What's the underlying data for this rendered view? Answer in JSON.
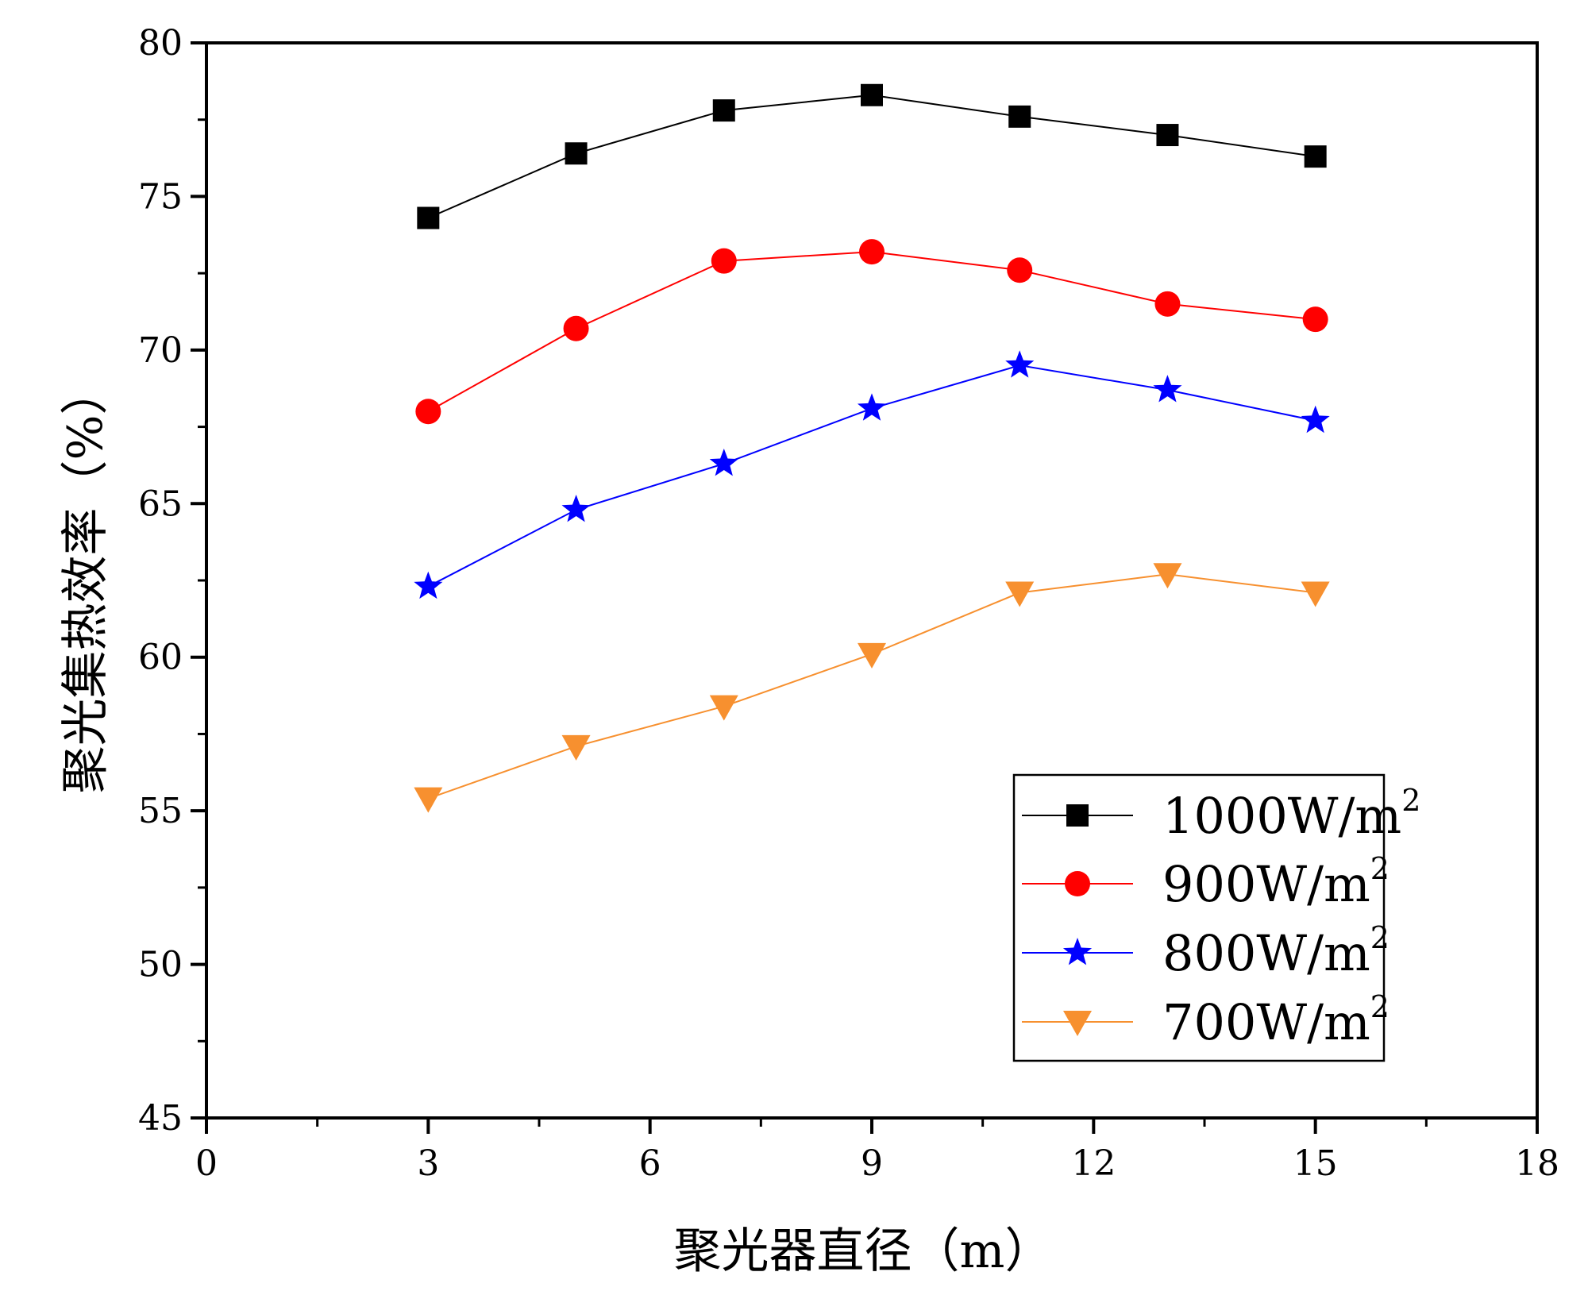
{
  "chart_data": {
    "type": "line",
    "title": "",
    "xlabel": "聚光器直径（m）",
    "ylabel": "聚光集热效率（%）",
    "xlim": [
      0,
      18
    ],
    "ylim": [
      45,
      80
    ],
    "x_ticks": [
      0,
      3,
      6,
      9,
      12,
      15,
      18
    ],
    "y_ticks": [
      45,
      50,
      55,
      60,
      65,
      70,
      75,
      80
    ],
    "grid": false,
    "legend_position": "bottom-right",
    "x": [
      3,
      5,
      7,
      9,
      11,
      13,
      15
    ],
    "series": [
      {
        "name": "1000W/m",
        "sup": "2",
        "label": "1000W/m²",
        "color": "#000000",
        "marker": "square",
        "values": [
          74.3,
          76.4,
          77.8,
          78.3,
          77.6,
          77.0,
          76.3
        ]
      },
      {
        "name": "900W/m",
        "sup": "2",
        "label": "900W/m²",
        "color": "#ff0000",
        "marker": "circle",
        "values": [
          68.0,
          70.7,
          72.9,
          73.2,
          72.6,
          71.5,
          71.0
        ]
      },
      {
        "name": "800W/m",
        "sup": "2",
        "label": "800W/m²",
        "color": "#0000ff",
        "marker": "star",
        "values": [
          62.3,
          64.8,
          66.3,
          68.1,
          69.5,
          68.7,
          67.7
        ]
      },
      {
        "name": "700W/m",
        "sup": "2",
        "label": "700W/m²",
        "color": "#f7902f",
        "marker": "triangle-down",
        "values": [
          55.4,
          57.1,
          58.4,
          60.1,
          62.1,
          62.7,
          62.1
        ]
      }
    ]
  }
}
